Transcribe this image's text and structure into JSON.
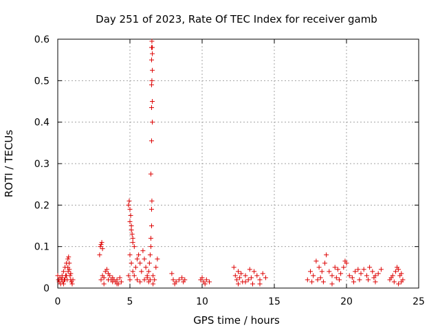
{
  "chart_data": {
    "type": "scatter",
    "title": "Day 251 of 2023, Rate Of TEC Index for receiver gamb",
    "xlabel": "GPS time / hours",
    "ylabel": "ROTI / TECUs",
    "xlim": [
      0,
      25
    ],
    "ylim": [
      0,
      0.6
    ],
    "xticks": [
      0,
      5,
      10,
      15,
      20,
      25
    ],
    "xtick_labels": [
      "0",
      "5",
      "10",
      "15",
      "20",
      "25"
    ],
    "yticks": [
      0,
      0.1,
      0.2,
      0.3,
      0.4,
      0.5,
      0.6
    ],
    "ytick_labels": [
      "0",
      "0.1",
      "0.2",
      "0.3",
      "0.4",
      "0.5",
      "0.6"
    ],
    "grid": true,
    "marker": "+",
    "series": [
      {
        "color": "#dd0000",
        "points": [
          [
            0.0,
            0.03
          ],
          [
            0.05,
            0.02
          ],
          [
            0.1,
            0.015
          ],
          [
            0.15,
            0.025
          ],
          [
            0.2,
            0.01
          ],
          [
            0.25,
            0.02
          ],
          [
            0.3,
            0.03
          ],
          [
            0.35,
            0.015
          ],
          [
            0.4,
            0.04
          ],
          [
            0.45,
            0.02
          ],
          [
            0.5,
            0.05
          ],
          [
            0.55,
            0.03
          ],
          [
            0.6,
            0.06
          ],
          [
            0.65,
            0.02
          ],
          [
            0.7,
            0.07
          ],
          [
            0.72,
            0.04
          ],
          [
            0.75,
            0.075
          ],
          [
            0.8,
            0.06
          ],
          [
            0.85,
            0.03
          ],
          [
            0.9,
            0.02
          ],
          [
            0.95,
            0.015
          ],
          [
            1.0,
            0.01
          ],
          [
            1.05,
            0.02
          ],
          [
            0.5,
            0.02
          ],
          [
            0.6,
            0.03
          ],
          [
            0.3,
            0.025
          ],
          [
            0.7,
            0.05
          ],
          [
            0.8,
            0.045
          ],
          [
            0.9,
            0.035
          ],
          [
            0.4,
            0.01
          ],
          [
            2.9,
            0.08
          ],
          [
            2.95,
            0.1
          ],
          [
            3.0,
            0.105
          ],
          [
            3.05,
            0.11
          ],
          [
            3.1,
            0.095
          ],
          [
            3.0,
            0.02
          ],
          [
            3.1,
            0.03
          ],
          [
            3.2,
            0.025
          ],
          [
            3.3,
            0.04
          ],
          [
            3.4,
            0.045
          ],
          [
            3.5,
            0.035
          ],
          [
            3.6,
            0.03
          ],
          [
            3.7,
            0.02
          ],
          [
            3.8,
            0.015
          ],
          [
            3.9,
            0.02
          ],
          [
            4.0,
            0.015
          ],
          [
            4.1,
            0.02
          ],
          [
            4.2,
            0.01
          ],
          [
            4.3,
            0.025
          ],
          [
            4.4,
            0.015
          ],
          [
            3.2,
            0.01
          ],
          [
            3.5,
            0.02
          ],
          [
            3.8,
            0.025
          ],
          [
            4.1,
            0.01
          ],
          [
            4.9,
            0.2
          ],
          [
            4.95,
            0.21
          ],
          [
            5.0,
            0.19
          ],
          [
            5.05,
            0.175
          ],
          [
            5.1,
            0.15
          ],
          [
            5.15,
            0.13
          ],
          [
            5.2,
            0.11
          ],
          [
            5.0,
            0.08
          ],
          [
            5.1,
            0.06
          ],
          [
            5.2,
            0.04
          ],
          [
            4.9,
            0.03
          ],
          [
            5.0,
            0.02
          ],
          [
            5.3,
            0.03
          ],
          [
            5.4,
            0.05
          ],
          [
            5.5,
            0.07
          ],
          [
            5.6,
            0.08
          ],
          [
            5.7,
            0.06
          ],
          [
            5.8,
            0.04
          ],
          [
            5.9,
            0.09
          ],
          [
            6.0,
            0.07
          ],
          [
            6.1,
            0.05
          ],
          [
            6.2,
            0.03
          ],
          [
            5.5,
            0.02
          ],
          [
            5.7,
            0.015
          ],
          [
            6.0,
            0.02
          ],
          [
            6.2,
            0.025
          ],
          [
            5.3,
            0.1
          ],
          [
            5.2,
            0.12
          ],
          [
            5.1,
            0.14
          ],
          [
            5.0,
            0.16
          ],
          [
            6.3,
            0.04
          ],
          [
            6.35,
            0.06
          ],
          [
            6.4,
            0.08
          ],
          [
            6.45,
            0.1
          ],
          [
            6.45,
            0.12
          ],
          [
            6.5,
            0.15
          ],
          [
            6.5,
            0.19
          ],
          [
            6.52,
            0.21
          ],
          [
            6.45,
            0.275
          ],
          [
            6.5,
            0.355
          ],
          [
            6.55,
            0.4
          ],
          [
            6.5,
            0.435
          ],
          [
            6.55,
            0.45
          ],
          [
            6.5,
            0.49
          ],
          [
            6.52,
            0.5
          ],
          [
            6.55,
            0.525
          ],
          [
            6.5,
            0.55
          ],
          [
            6.55,
            0.565
          ],
          [
            6.5,
            0.58
          ],
          [
            6.55,
            0.58
          ],
          [
            6.52,
            0.595
          ],
          [
            6.6,
            0.03
          ],
          [
            6.7,
            0.02
          ],
          [
            6.8,
            0.05
          ],
          [
            6.9,
            0.07
          ],
          [
            6.4,
            0.02
          ],
          [
            6.3,
            0.015
          ],
          [
            6.6,
            0.01
          ],
          [
            7.9,
            0.035
          ],
          [
            8.0,
            0.02
          ],
          [
            8.2,
            0.015
          ],
          [
            8.4,
            0.02
          ],
          [
            8.6,
            0.025
          ],
          [
            8.7,
            0.015
          ],
          [
            8.8,
            0.02
          ],
          [
            8.1,
            0.01
          ],
          [
            9.9,
            0.02
          ],
          [
            10.0,
            0.025
          ],
          [
            10.1,
            0.015
          ],
          [
            10.3,
            0.02
          ],
          [
            10.5,
            0.015
          ],
          [
            10.2,
            0.01
          ],
          [
            12.2,
            0.05
          ],
          [
            12.3,
            0.03
          ],
          [
            12.4,
            0.02
          ],
          [
            12.5,
            0.04
          ],
          [
            12.6,
            0.025
          ],
          [
            12.8,
            0.015
          ],
          [
            13.0,
            0.03
          ],
          [
            13.2,
            0.02
          ],
          [
            13.4,
            0.025
          ],
          [
            13.6,
            0.04
          ],
          [
            13.8,
            0.03
          ],
          [
            14.0,
            0.02
          ],
          [
            14.2,
            0.035
          ],
          [
            14.4,
            0.025
          ],
          [
            12.5,
            0.01
          ],
          [
            13.0,
            0.015
          ],
          [
            13.5,
            0.01
          ],
          [
            14.0,
            0.01
          ],
          [
            12.7,
            0.035
          ],
          [
            13.3,
            0.045
          ],
          [
            17.3,
            0.02
          ],
          [
            17.5,
            0.04
          ],
          [
            17.7,
            0.03
          ],
          [
            17.9,
            0.065
          ],
          [
            18.1,
            0.05
          ],
          [
            18.3,
            0.04
          ],
          [
            18.5,
            0.06
          ],
          [
            18.6,
            0.08
          ],
          [
            18.8,
            0.04
          ],
          [
            19.0,
            0.03
          ],
          [
            19.2,
            0.05
          ],
          [
            19.4,
            0.045
          ],
          [
            19.6,
            0.035
          ],
          [
            19.8,
            0.05
          ],
          [
            19.9,
            0.065
          ],
          [
            20.0,
            0.06
          ],
          [
            20.2,
            0.03
          ],
          [
            20.4,
            0.025
          ],
          [
            20.6,
            0.04
          ],
          [
            20.8,
            0.045
          ],
          [
            21.0,
            0.035
          ],
          [
            21.2,
            0.045
          ],
          [
            21.4,
            0.03
          ],
          [
            21.6,
            0.05
          ],
          [
            21.8,
            0.04
          ],
          [
            22.0,
            0.03
          ],
          [
            22.2,
            0.035
          ],
          [
            22.4,
            0.045
          ],
          [
            17.6,
            0.015
          ],
          [
            18.0,
            0.02
          ],
          [
            18.4,
            0.015
          ],
          [
            19.0,
            0.01
          ],
          [
            19.5,
            0.02
          ],
          [
            20.5,
            0.015
          ],
          [
            21.5,
            0.02
          ],
          [
            22.0,
            0.015
          ],
          [
            18.2,
            0.025
          ],
          [
            19.3,
            0.025
          ],
          [
            20.9,
            0.02
          ],
          [
            21.9,
            0.025
          ],
          [
            23.0,
            0.02
          ],
          [
            23.2,
            0.03
          ],
          [
            23.4,
            0.04
          ],
          [
            23.5,
            0.05
          ],
          [
            23.6,
            0.045
          ],
          [
            23.7,
            0.03
          ],
          [
            23.8,
            0.035
          ],
          [
            23.9,
            0.02
          ],
          [
            23.3,
            0.015
          ],
          [
            23.6,
            0.01
          ],
          [
            23.1,
            0.025
          ],
          [
            23.8,
            0.015
          ]
        ]
      }
    ]
  }
}
